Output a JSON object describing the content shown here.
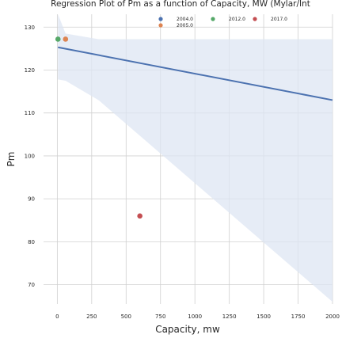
{
  "chart_data": {
    "type": "scatter",
    "title": "Regression Plot of Pm as a function of Capacity, MW (Mylar/Int",
    "xlabel": "Capacity, mw",
    "ylabel": "Pm",
    "xlim": [
      -100,
      2000
    ],
    "ylim": [
      65.5,
      133
    ],
    "x_ticks": [
      "0",
      "250",
      "500",
      "750",
      "1000",
      "1250",
      "1500",
      "1750",
      "2000"
    ],
    "y_ticks": [
      "70",
      "80",
      "90",
      "100",
      "110",
      "120",
      "130"
    ],
    "grid": true,
    "legend_position": "top-right",
    "series": [
      {
        "name": "2004.0",
        "color": "#4c72b0",
        "points": []
      },
      {
        "name": "2005.0",
        "color": "#dd8452",
        "points": [
          [
            60,
            127.2
          ]
        ]
      },
      {
        "name": "2012.0",
        "color": "#55a868",
        "points": [
          [
            5,
            127.2
          ]
        ]
      },
      {
        "name": "2017.0",
        "color": "#c44e52",
        "points": [
          [
            600,
            86.0
          ]
        ]
      }
    ],
    "regression": {
      "color": "#4c72b0",
      "line": [
        [
          5,
          125.3
        ],
        [
          2000,
          113.0
        ]
      ],
      "ci_band_color": "#dde5f3",
      "ci_upper": [
        [
          5,
          133
        ],
        [
          60,
          128.5
        ],
        [
          300,
          127.2
        ],
        [
          2000,
          127.2
        ]
      ],
      "ci_lower": [
        [
          5,
          117.8
        ],
        [
          60,
          117.5
        ],
        [
          300,
          113.0
        ],
        [
          2000,
          66.0
        ]
      ]
    }
  }
}
